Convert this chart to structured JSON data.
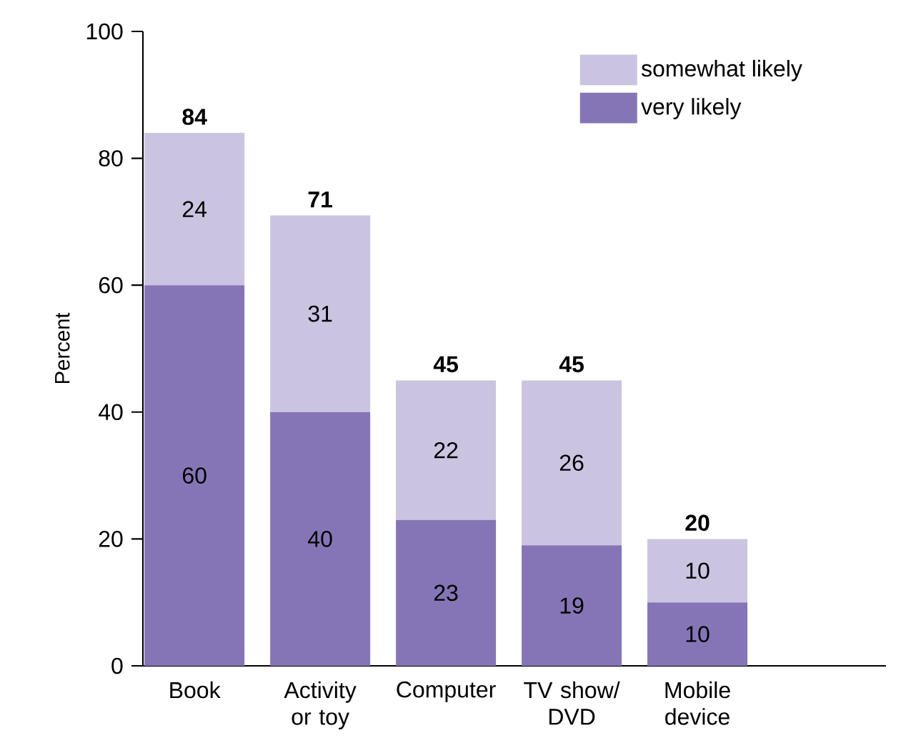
{
  "chart_data": {
    "type": "bar",
    "stacked": true,
    "ylabel": "Percent",
    "categories": [
      "Book",
      "Activity or toy",
      "Computer",
      "TV show/ DVD",
      "Mobile device"
    ],
    "series": [
      {
        "name": "very likely",
        "color": "#8675b6",
        "values": [
          60,
          40,
          23,
          19,
          10
        ],
        "value_labels": [
          "60",
          "40",
          "23",
          "19",
          "10"
        ]
      },
      {
        "name": "somewhat likely",
        "color": "#cbc4e1",
        "values": [
          24,
          31,
          22,
          26,
          10
        ],
        "value_labels": [
          "24",
          "31",
          "22",
          "26",
          "10"
        ]
      }
    ],
    "ylim": [
      0,
      100
    ],
    "yticks": [
      0,
      20,
      40,
      60,
      80,
      100
    ],
    "totals": [
      "84",
      "71",
      "45",
      "45",
      "20"
    ],
    "legend": "top right"
  }
}
